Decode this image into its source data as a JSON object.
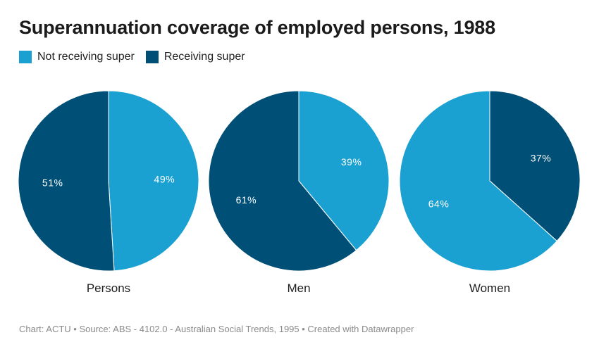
{
  "title": "Superannuation coverage of employed persons, 1988",
  "legend": [
    {
      "label": "Not receiving super",
      "color": "#1ba1d1"
    },
    {
      "label": "Receiving super",
      "color": "#004f76"
    }
  ],
  "footer": {
    "text": "Chart: ACTU • Source: ABS - 4102.0 - Australian Social Trends, 1995 • Created with Datawrapper"
  },
  "chart_data": {
    "type": "pie",
    "title": "Superannuation coverage of employed persons, 1988",
    "series_names": [
      "Not receiving super",
      "Receiving super"
    ],
    "colors": {
      "Not receiving super": "#1ba1d1",
      "Receiving super": "#004f76"
    },
    "legend_position": "top-left",
    "charts": [
      {
        "category": "Persons",
        "slices": [
          {
            "name": "Not receiving super",
            "value": 49,
            "label": "49%"
          },
          {
            "name": "Receiving super",
            "value": 51,
            "label": "51%"
          }
        ]
      },
      {
        "category": "Men",
        "slices": [
          {
            "name": "Not receiving super",
            "value": 39,
            "label": "39%"
          },
          {
            "name": "Receiving super",
            "value": 61,
            "label": "61%"
          }
        ]
      },
      {
        "category": "Women",
        "slices": [
          {
            "name": "Not receiving super",
            "value": 64,
            "label": "64%"
          },
          {
            "name": "Receiving super",
            "value": 37,
            "label": "37%"
          }
        ]
      }
    ]
  }
}
